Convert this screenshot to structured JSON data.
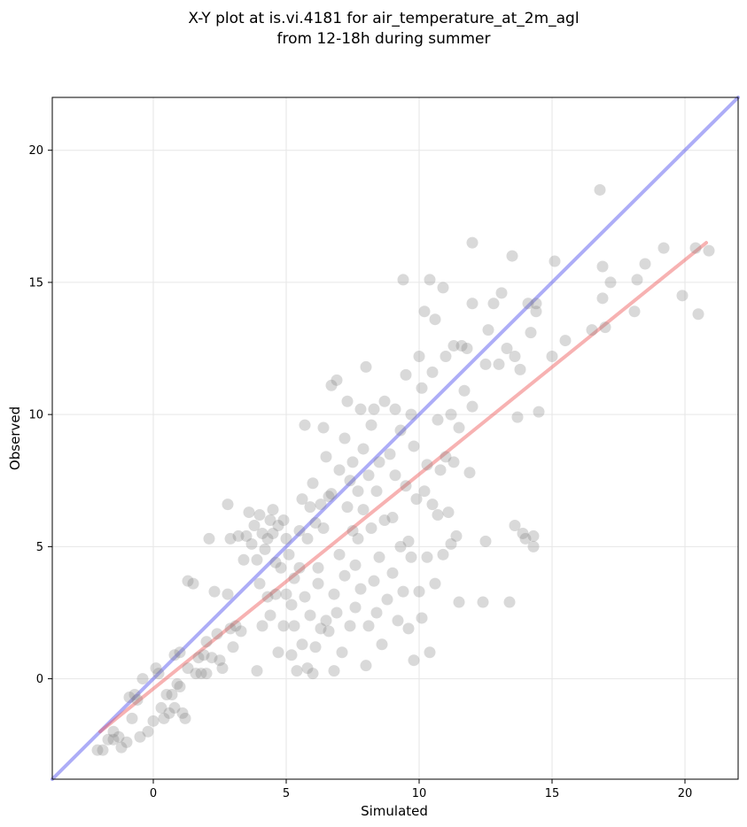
{
  "chart_data": {
    "type": "scatter",
    "title": [
      "X-Y plot at is.vi.4181 for air_temperature_at_2m_agl",
      "from 12-18h during summer"
    ],
    "xlabel": "Simulated",
    "ylabel": "Observed",
    "xlim": [
      -3.8,
      22
    ],
    "ylim": [
      -3.8,
      22
    ],
    "xticks": [
      0,
      5,
      10,
      15,
      20
    ],
    "yticks": [
      0,
      5,
      10,
      15,
      20
    ],
    "grid": true,
    "lines": [
      {
        "x": [
          -3.8,
          22
        ],
        "y": [
          -3.8,
          22
        ],
        "color": "#4a4aee"
      },
      {
        "x": [
          -2,
          20.8
        ],
        "y": [
          -2,
          16.5
        ],
        "color": "#ee5555"
      }
    ],
    "point_color": "#808080",
    "points": [
      [
        -2.1,
        -2.7
      ],
      [
        -1.9,
        -2.7
      ],
      [
        -1.7,
        -2.3
      ],
      [
        -1.5,
        -2.3
      ],
      [
        -1.5,
        -2.0
      ],
      [
        -1.3,
        -2.2
      ],
      [
        -1.2,
        -2.6
      ],
      [
        -1.0,
        -2.4
      ],
      [
        -0.8,
        -1.5
      ],
      [
        -0.7,
        -0.6
      ],
      [
        -0.9,
        -0.7
      ],
      [
        -0.6,
        -0.8
      ],
      [
        -0.5,
        -2.2
      ],
      [
        -0.4,
        0.0
      ],
      [
        -0.2,
        -2.0
      ],
      [
        0.0,
        -1.6
      ],
      [
        0.1,
        0.4
      ],
      [
        0.2,
        0.2
      ],
      [
        0.3,
        -1.1
      ],
      [
        0.4,
        -1.5
      ],
      [
        0.5,
        -0.6
      ],
      [
        0.6,
        -1.3
      ],
      [
        0.7,
        -0.6
      ],
      [
        0.8,
        0.9
      ],
      [
        0.8,
        -1.1
      ],
      [
        0.9,
        -0.2
      ],
      [
        1.0,
        -0.3
      ],
      [
        1.0,
        1.0
      ],
      [
        1.1,
        -1.3
      ],
      [
        1.2,
        -1.5
      ],
      [
        1.3,
        0.4
      ],
      [
        1.3,
        3.7
      ],
      [
        1.5,
        3.6
      ],
      [
        1.6,
        0.2
      ],
      [
        1.7,
        0.8
      ],
      [
        1.8,
        0.2
      ],
      [
        1.9,
        0.9
      ],
      [
        2.0,
        0.2
      ],
      [
        2.0,
        1.4
      ],
      [
        2.1,
        5.3
      ],
      [
        2.2,
        0.8
      ],
      [
        2.3,
        3.3
      ],
      [
        2.4,
        1.7
      ],
      [
        2.5,
        0.7
      ],
      [
        2.6,
        0.4
      ],
      [
        2.8,
        6.6
      ],
      [
        2.8,
        3.2
      ],
      [
        2.9,
        1.9
      ],
      [
        2.9,
        5.3
      ],
      [
        3.0,
        1.2
      ],
      [
        3.1,
        2.0
      ],
      [
        3.2,
        5.4
      ],
      [
        3.3,
        1.8
      ],
      [
        3.4,
        4.5
      ],
      [
        3.5,
        5.4
      ],
      [
        3.6,
        6.3
      ],
      [
        3.7,
        5.1
      ],
      [
        3.8,
        5.8
      ],
      [
        3.9,
        4.5
      ],
      [
        3.9,
        0.3
      ],
      [
        4.0,
        6.2
      ],
      [
        4.0,
        3.6
      ],
      [
        4.1,
        5.5
      ],
      [
        4.1,
        2.0
      ],
      [
        4.2,
        4.9
      ],
      [
        4.3,
        5.3
      ],
      [
        4.3,
        3.1
      ],
      [
        4.4,
        6.0
      ],
      [
        4.4,
        2.4
      ],
      [
        4.5,
        5.5
      ],
      [
        4.5,
        6.4
      ],
      [
        4.6,
        4.4
      ],
      [
        4.6,
        3.2
      ],
      [
        4.7,
        5.8
      ],
      [
        4.7,
        1.0
      ],
      [
        4.8,
        4.2
      ],
      [
        4.9,
        6.0
      ],
      [
        4.9,
        2.0
      ],
      [
        5.0,
        5.3
      ],
      [
        5.0,
        3.2
      ],
      [
        5.1,
        4.7
      ],
      [
        5.2,
        2.8
      ],
      [
        5.2,
        0.9
      ],
      [
        5.3,
        3.8
      ],
      [
        5.3,
        2.0
      ],
      [
        5.4,
        0.3
      ],
      [
        5.5,
        5.6
      ],
      [
        5.5,
        4.2
      ],
      [
        5.6,
        6.8
      ],
      [
        5.6,
        1.3
      ],
      [
        5.7,
        9.6
      ],
      [
        5.7,
        3.1
      ],
      [
        5.8,
        5.3
      ],
      [
        5.8,
        0.4
      ],
      [
        5.9,
        6.5
      ],
      [
        5.9,
        2.4
      ],
      [
        6.0,
        7.4
      ],
      [
        6.0,
        0.2
      ],
      [
        6.1,
        5.9
      ],
      [
        6.1,
        1.2
      ],
      [
        6.2,
        4.2
      ],
      [
        6.2,
        3.6
      ],
      [
        6.3,
        6.6
      ],
      [
        6.3,
        1.9
      ],
      [
        6.4,
        5.7
      ],
      [
        6.4,
        9.5
      ],
      [
        6.5,
        2.2
      ],
      [
        6.5,
        8.4
      ],
      [
        6.6,
        6.9
      ],
      [
        6.6,
        1.8
      ],
      [
        6.7,
        11.1
      ],
      [
        6.7,
        7.0
      ],
      [
        6.8,
        3.2
      ],
      [
        6.8,
        0.3
      ],
      [
        6.9,
        11.3
      ],
      [
        6.9,
        2.5
      ],
      [
        7.0,
        7.9
      ],
      [
        7.0,
        4.7
      ],
      [
        7.1,
        1.0
      ],
      [
        7.2,
        9.1
      ],
      [
        7.2,
        3.9
      ],
      [
        7.3,
        6.5
      ],
      [
        7.3,
        10.5
      ],
      [
        7.4,
        7.5
      ],
      [
        7.4,
        2.0
      ],
      [
        7.5,
        5.6
      ],
      [
        7.5,
        8.2
      ],
      [
        7.6,
        4.3
      ],
      [
        7.6,
        2.7
      ],
      [
        7.7,
        7.1
      ],
      [
        7.7,
        5.3
      ],
      [
        7.8,
        10.2
      ],
      [
        7.8,
        3.4
      ],
      [
        7.9,
        8.7
      ],
      [
        7.9,
        6.4
      ],
      [
        8.0,
        11.8
      ],
      [
        8.0,
        0.5
      ],
      [
        8.1,
        7.7
      ],
      [
        8.1,
        2.0
      ],
      [
        8.2,
        9.6
      ],
      [
        8.2,
        5.7
      ],
      [
        8.3,
        3.7
      ],
      [
        8.3,
        10.2
      ],
      [
        8.4,
        7.1
      ],
      [
        8.4,
        2.5
      ],
      [
        8.5,
        8.2
      ],
      [
        8.5,
        4.6
      ],
      [
        8.6,
        1.3
      ],
      [
        8.7,
        6.0
      ],
      [
        8.7,
        10.5
      ],
      [
        8.8,
        3.0
      ],
      [
        8.9,
        8.5
      ],
      [
        9.0,
        6.1
      ],
      [
        9.0,
        4.0
      ],
      [
        9.1,
        10.2
      ],
      [
        9.1,
        7.7
      ],
      [
        9.2,
        2.2
      ],
      [
        9.3,
        5.0
      ],
      [
        9.3,
        9.4
      ],
      [
        9.4,
        15.1
      ],
      [
        9.4,
        3.3
      ],
      [
        9.5,
        11.5
      ],
      [
        9.5,
        7.3
      ],
      [
        9.6,
        1.9
      ],
      [
        9.6,
        5.2
      ],
      [
        9.7,
        10.0
      ],
      [
        9.7,
        4.6
      ],
      [
        9.8,
        8.8
      ],
      [
        9.8,
        0.7
      ],
      [
        9.9,
        6.8
      ],
      [
        10.0,
        12.2
      ],
      [
        10.0,
        3.3
      ],
      [
        10.1,
        11.0
      ],
      [
        10.1,
        2.3
      ],
      [
        10.2,
        13.9
      ],
      [
        10.2,
        7.1
      ],
      [
        10.3,
        8.1
      ],
      [
        10.3,
        4.6
      ],
      [
        10.4,
        15.1
      ],
      [
        10.4,
        1.0
      ],
      [
        10.5,
        6.6
      ],
      [
        10.5,
        11.6
      ],
      [
        10.6,
        13.6
      ],
      [
        10.6,
        3.6
      ],
      [
        10.7,
        9.8
      ],
      [
        10.7,
        6.2
      ],
      [
        10.8,
        7.9
      ],
      [
        10.9,
        14.8
      ],
      [
        10.9,
        4.7
      ],
      [
        11.0,
        12.2
      ],
      [
        11.0,
        8.4
      ],
      [
        11.1,
        6.3
      ],
      [
        11.2,
        10.0
      ],
      [
        11.2,
        5.1
      ],
      [
        11.3,
        12.6
      ],
      [
        11.3,
        8.2
      ],
      [
        11.4,
        5.4
      ],
      [
        11.5,
        9.5
      ],
      [
        11.5,
        2.9
      ],
      [
        11.6,
        12.6
      ],
      [
        11.7,
        10.9
      ],
      [
        11.8,
        12.5
      ],
      [
        11.9,
        7.8
      ],
      [
        12.0,
        14.2
      ],
      [
        12.0,
        16.5
      ],
      [
        12.0,
        10.3
      ],
      [
        12.4,
        2.9
      ],
      [
        12.5,
        11.9
      ],
      [
        12.5,
        5.2
      ],
      [
        12.6,
        13.2
      ],
      [
        12.8,
        14.2
      ],
      [
        13.0,
        11.9
      ],
      [
        13.1,
        14.6
      ],
      [
        13.3,
        12.5
      ],
      [
        13.4,
        2.9
      ],
      [
        13.5,
        16.0
      ],
      [
        13.6,
        12.2
      ],
      [
        13.6,
        5.8
      ],
      [
        13.7,
        9.9
      ],
      [
        13.8,
        11.7
      ],
      [
        13.9,
        5.5
      ],
      [
        14.0,
        5.3
      ],
      [
        14.1,
        14.2
      ],
      [
        14.2,
        13.1
      ],
      [
        14.3,
        5.4
      ],
      [
        14.3,
        5.0
      ],
      [
        14.4,
        13.9
      ],
      [
        14.4,
        14.2
      ],
      [
        14.5,
        10.1
      ],
      [
        15.0,
        12.2
      ],
      [
        15.1,
        15.8
      ],
      [
        15.5,
        12.8
      ],
      [
        16.5,
        13.2
      ],
      [
        16.8,
        18.5
      ],
      [
        16.9,
        15.6
      ],
      [
        16.9,
        14.4
      ],
      [
        17.0,
        13.3
      ],
      [
        17.2,
        15.0
      ],
      [
        18.1,
        13.9
      ],
      [
        18.2,
        15.1
      ],
      [
        18.5,
        15.7
      ],
      [
        19.2,
        16.3
      ],
      [
        19.9,
        14.5
      ],
      [
        20.4,
        16.3
      ],
      [
        20.5,
        13.8
      ],
      [
        20.9,
        16.2
      ]
    ]
  }
}
